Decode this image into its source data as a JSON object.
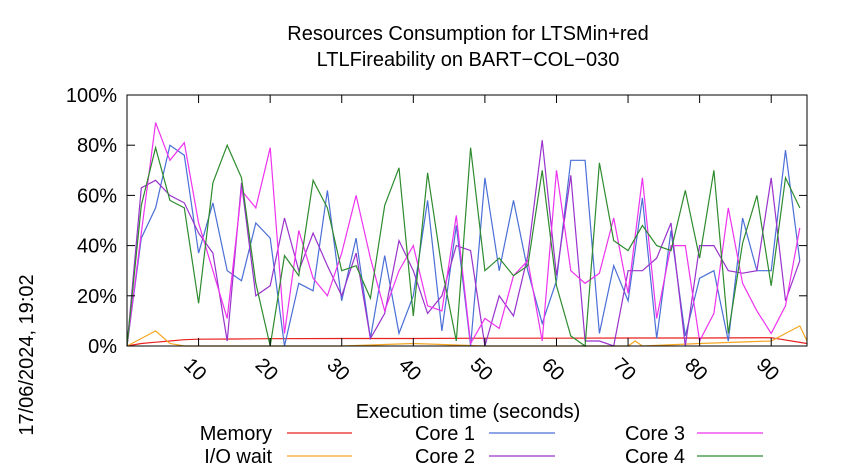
{
  "timestamp": "17/06/2024, 19:02",
  "chart_data": {
    "type": "line",
    "title": "Resources Consumption for LTSMin+red",
    "subtitle": "LTLFireability on BART−COL−030",
    "xlabel": "Execution time (seconds)",
    "ylabel": "",
    "xlim": [
      0,
      95
    ],
    "ylim": [
      0,
      100
    ],
    "x_ticks": [
      10,
      20,
      30,
      40,
      50,
      60,
      70,
      80,
      90
    ],
    "x_tick_labels": [
      "10",
      "20",
      "30",
      "40",
      "50",
      "60",
      "70",
      "80",
      "90"
    ],
    "y_ticks": [
      0,
      20,
      40,
      60,
      80,
      100
    ],
    "y_tick_labels": [
      "0%",
      "20%",
      "40%",
      "60%",
      "80%",
      "100%"
    ],
    "grid": false,
    "legend_position": "bottom",
    "series": [
      {
        "name": "Memory",
        "color": "#e8211f",
        "x": [
          0,
          2,
          4,
          6,
          8,
          10,
          15,
          20,
          30,
          40,
          50,
          60,
          70,
          80,
          90,
          95
        ],
        "y": [
          0,
          1,
          1.5,
          2,
          2.5,
          2.7,
          2.8,
          2.9,
          3.0,
          3.0,
          3.1,
          3.1,
          3.2,
          3.2,
          3.3,
          1
        ]
      },
      {
        "name": "I/O wait",
        "color": "#f5a623",
        "x": [
          0,
          2,
          4,
          6,
          8,
          10,
          20,
          30,
          40,
          50,
          60,
          70,
          71,
          72,
          80,
          90,
          94,
          95
        ],
        "y": [
          0,
          3,
          6,
          1,
          0,
          0,
          0,
          0,
          1,
          0,
          0,
          0,
          2,
          0,
          1,
          2,
          8,
          2
        ]
      },
      {
        "name": "Core 1",
        "color": "#4a6fd6",
        "x": [
          0,
          2,
          4,
          6,
          8,
          10,
          12,
          14,
          16,
          18,
          20,
          22,
          24,
          26,
          28,
          30,
          32,
          34,
          36,
          38,
          40,
          42,
          44,
          46,
          48,
          50,
          52,
          54,
          56,
          58,
          60,
          62,
          64,
          66,
          68,
          70,
          72,
          74,
          76,
          78,
          80,
          82,
          84,
          86,
          88,
          90,
          92,
          94
        ],
        "y": [
          0,
          43,
          55,
          80,
          76,
          37,
          57,
          30,
          26,
          49,
          43,
          0,
          25,
          22,
          62,
          18,
          43,
          3,
          36,
          5,
          20,
          58,
          6,
          48,
          0,
          67,
          30,
          58,
          30,
          9,
          26,
          74,
          74,
          5,
          32,
          18,
          59,
          3,
          46,
          4,
          27,
          30,
          2,
          51,
          30,
          30,
          78,
          34
        ]
      },
      {
        "name": "Core 2",
        "color": "#9933cc",
        "x": [
          0,
          2,
          4,
          6,
          8,
          10,
          12,
          14,
          16,
          18,
          20,
          22,
          24,
          26,
          28,
          30,
          32,
          34,
          36,
          38,
          40,
          42,
          44,
          46,
          48,
          50,
          52,
          54,
          56,
          58,
          60,
          62,
          64,
          66,
          68,
          70,
          72,
          74,
          76,
          78,
          80,
          82,
          84,
          86,
          88,
          90,
          92,
          94
        ],
        "y": [
          0,
          63,
          66,
          60,
          57,
          45,
          37,
          2,
          65,
          20,
          24,
          51,
          30,
          45,
          32,
          20,
          37,
          3,
          13,
          42,
          30,
          13,
          20,
          40,
          38,
          0,
          20,
          12,
          36,
          82,
          28,
          68,
          2,
          2,
          0,
          30,
          30,
          35,
          49,
          0,
          40,
          40,
          30,
          29,
          30,
          67,
          18,
          34
        ]
      },
      {
        "name": "Core 3",
        "color": "#ee33ee",
        "x": [
          0,
          2,
          4,
          6,
          8,
          10,
          12,
          14,
          16,
          18,
          20,
          22,
          24,
          26,
          28,
          30,
          32,
          34,
          36,
          38,
          40,
          42,
          44,
          46,
          48,
          50,
          52,
          54,
          56,
          58,
          60,
          62,
          64,
          66,
          68,
          70,
          72,
          74,
          76,
          78,
          80,
          82,
          84,
          86,
          88,
          90,
          92,
          94
        ],
        "y": [
          0,
          45,
          89,
          74,
          81,
          49,
          30,
          11,
          62,
          55,
          79,
          5,
          46,
          27,
          20,
          37,
          60,
          35,
          14,
          30,
          40,
          16,
          14,
          52,
          1,
          11,
          7,
          28,
          34,
          2,
          70,
          30,
          25,
          29,
          51,
          21,
          67,
          11,
          40,
          40,
          2,
          13,
          55,
          25,
          14,
          5,
          16,
          47
        ]
      },
      {
        "name": "Core 4",
        "color": "#2e8b2e",
        "x": [
          0,
          2,
          4,
          6,
          8,
          10,
          12,
          14,
          16,
          18,
          20,
          22,
          24,
          26,
          28,
          30,
          32,
          34,
          36,
          38,
          40,
          42,
          44,
          46,
          48,
          50,
          52,
          54,
          56,
          58,
          60,
          62,
          64,
          66,
          68,
          70,
          72,
          74,
          76,
          78,
          80,
          82,
          84,
          86,
          88,
          90,
          92,
          94
        ],
        "y": [
          0,
          56,
          79,
          58,
          55,
          17,
          65,
          80,
          67,
          25,
          0,
          36,
          28,
          66,
          55,
          30,
          32,
          19,
          56,
          71,
          12,
          69,
          31,
          2,
          79,
          30,
          35,
          28,
          32,
          70,
          24,
          4,
          0,
          73,
          42,
          38,
          48,
          40,
          38,
          62,
          35,
          70,
          5,
          41,
          60,
          24,
          67,
          55
        ]
      }
    ]
  }
}
